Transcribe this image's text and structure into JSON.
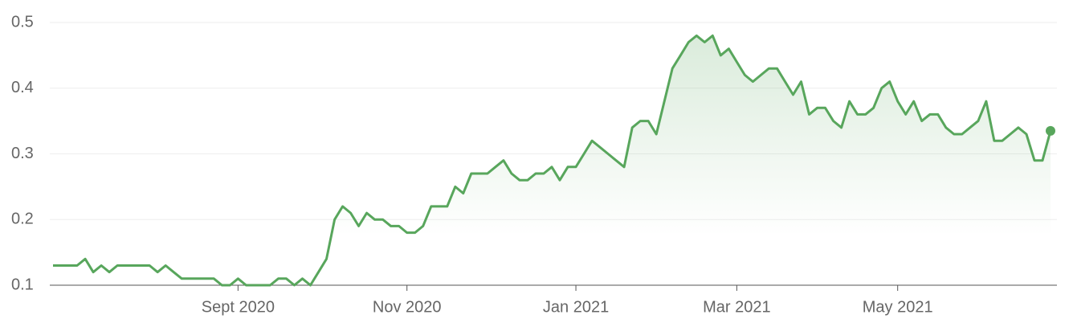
{
  "chart_data": {
    "type": "line",
    "categories": [
      null,
      null,
      null,
      null,
      null,
      null,
      null,
      null,
      null,
      null,
      null,
      null,
      null,
      null,
      null,
      null,
      null,
      null,
      null,
      null,
      null,
      null,
      null,
      "Sept 2020",
      null,
      null,
      null,
      null,
      null,
      null,
      null,
      null,
      null,
      null,
      null,
      null,
      null,
      null,
      null,
      null,
      null,
      null,
      null,
      null,
      "Nov 2020",
      null,
      null,
      null,
      null,
      null,
      null,
      null,
      null,
      null,
      null,
      null,
      null,
      null,
      null,
      null,
      null,
      null,
      null,
      null,
      null,
      "Jan 2021",
      null,
      null,
      null,
      null,
      null,
      null,
      null,
      null,
      null,
      null,
      null,
      null,
      null,
      null,
      null,
      null,
      null,
      null,
      null,
      "Mar 2021",
      null,
      null,
      null,
      null,
      null,
      null,
      null,
      null,
      null,
      null,
      null,
      null,
      null,
      null,
      null,
      null,
      null,
      null,
      null,
      "May 2021",
      null,
      null,
      null,
      null,
      null,
      null,
      null,
      null,
      null,
      null,
      null,
      null,
      null,
      null,
      null,
      null,
      null,
      null,
      null
    ],
    "values": [
      0.13,
      0.13,
      0.13,
      0.13,
      0.14,
      0.12,
      0.13,
      0.12,
      0.13,
      0.13,
      0.13,
      0.13,
      0.13,
      0.12,
      0.13,
      0.12,
      0.11,
      0.11,
      0.11,
      0.11,
      0.11,
      0.1,
      0.1,
      0.11,
      0.1,
      0.1,
      0.1,
      0.1,
      0.11,
      0.11,
      0.1,
      0.11,
      0.1,
      0.12,
      0.14,
      0.2,
      0.22,
      0.21,
      0.19,
      0.21,
      0.2,
      0.2,
      0.19,
      0.19,
      0.18,
      0.18,
      0.19,
      0.22,
      0.22,
      0.22,
      0.25,
      0.24,
      0.27,
      0.27,
      0.27,
      0.28,
      0.29,
      0.27,
      0.26,
      0.26,
      0.27,
      0.27,
      0.28,
      0.26,
      0.28,
      0.28,
      0.3,
      0.32,
      0.31,
      0.3,
      0.29,
      0.28,
      0.34,
      0.35,
      0.35,
      0.33,
      0.38,
      0.43,
      0.45,
      0.47,
      0.48,
      0.47,
      0.48,
      0.45,
      0.46,
      0.44,
      0.42,
      0.41,
      0.42,
      0.43,
      0.43,
      0.41,
      0.39,
      0.41,
      0.36,
      0.37,
      0.37,
      0.35,
      0.34,
      0.38,
      0.36,
      0.36,
      0.37,
      0.4,
      0.41,
      0.38,
      0.36,
      0.38,
      0.35,
      0.36,
      0.36,
      0.34,
      0.33,
      0.33,
      0.34,
      0.35,
      0.38,
      0.32,
      0.32,
      0.33,
      0.34,
      0.33,
      0.29,
      0.29,
      0.335
    ],
    "color": "#58a65c",
    "ylim": [
      0.1,
      0.5
    ],
    "yticks": [
      0.1,
      0.2,
      0.3,
      0.4,
      0.5
    ],
    "grid": true
  }
}
